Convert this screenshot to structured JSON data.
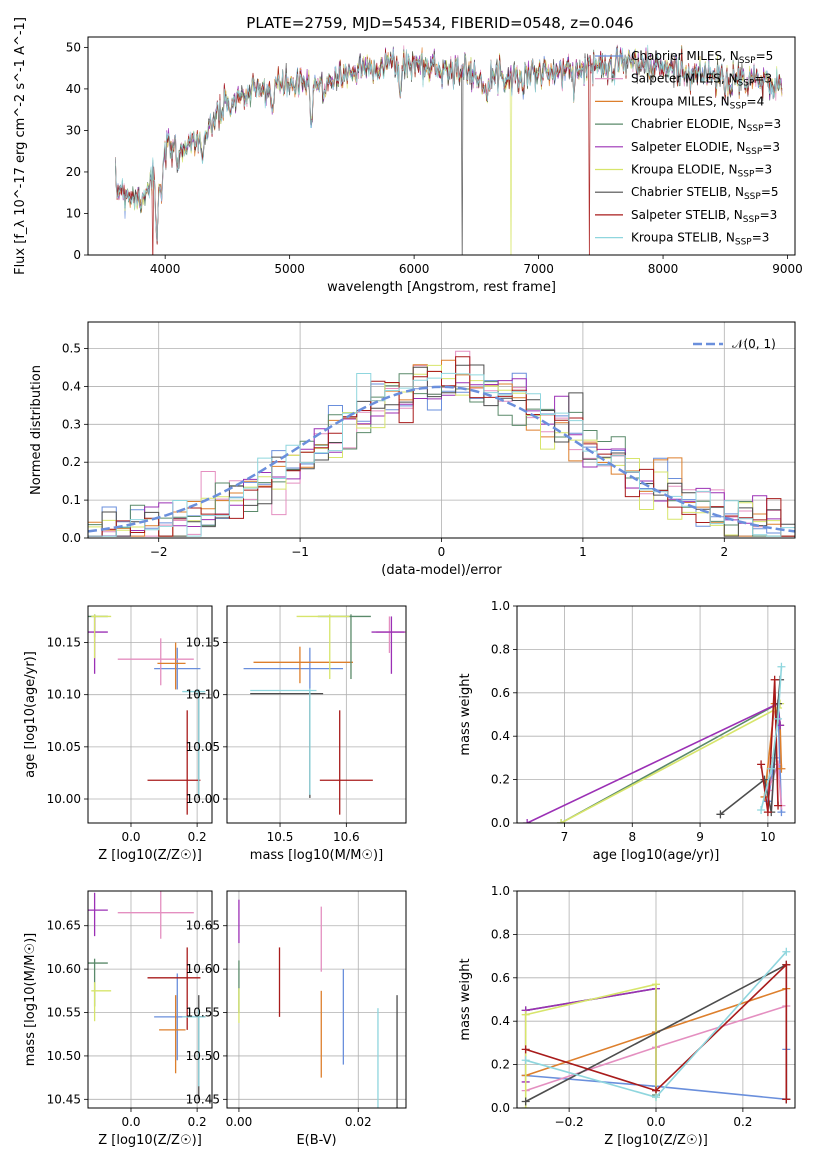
{
  "title": "PLATE=2759, MJD=54534, FIBERID=0548, z=0.046",
  "colors": {
    "Chabrier MILES": "#6a8fdc",
    "Salpeter MILES": "#e48fc0",
    "Kroupa MILES": "#dd7f2c",
    "Chabrier ELODIE": "#5a8a6a",
    "Salpeter ELODIE": "#9b30b5",
    "Kroupa ELODIE": "#d7e56b",
    "Chabrier STELIB": "#4d4d4d",
    "Salpeter STELIB": "#a81b1b",
    "Kroupa STELIB": "#8fd6de",
    "gauss": "#6a8fdc"
  },
  "chart_data": [
    {
      "type": "line",
      "title": "PLATE=2759, MJD=54534, FIBERID=0548, z=0.046",
      "xlabel": "wavelength [Angstrom, rest frame]",
      "ylabel": "Flux [f_λ 10^-17 erg cm^-2 s^-1 A^-1]",
      "xlim": [
        3380,
        9060
      ],
      "ylim": [
        0,
        52.5
      ],
      "xticks": [
        "4000",
        "5000",
        "6000",
        "7000",
        "8000",
        "9000"
      ],
      "yticks": [
        "0",
        "10",
        "20",
        "30",
        "40",
        "50"
      ],
      "legend_position": "upper-right",
      "series": [
        {
          "name": "Chabrier MILES",
          "nssp": "5"
        },
        {
          "name": "Salpeter MILES",
          "nssp": "3"
        },
        {
          "name": "Kroupa MILES",
          "nssp": "4"
        },
        {
          "name": "Chabrier ELODIE",
          "nssp": "3"
        },
        {
          "name": "Salpeter ELODIE",
          "nssp": "3"
        },
        {
          "name": "Kroupa ELODIE",
          "nssp": "3"
        },
        {
          "name": "Chabrier STELIB",
          "nssp": "5"
        },
        {
          "name": "Salpeter STELIB",
          "nssp": "3"
        },
        {
          "name": "Kroupa STELIB",
          "nssp": "3"
        }
      ],
      "continuum": {
        "x": [
          3600,
          3700,
          3800,
          3900,
          3950,
          4000,
          4100,
          4200,
          4300,
          4400,
          4500,
          4600,
          4700,
          4800,
          4900,
          5000,
          5100,
          5200,
          5300,
          5400,
          5500,
          5600,
          5800,
          6000,
          6200,
          6400,
          6600,
          6800,
          7000,
          7200,
          7400,
          7600,
          7800,
          8000,
          8200,
          8400,
          8600,
          8800,
          8960
        ],
        "y": [
          16,
          15,
          13,
          19,
          20,
          25,
          26,
          27,
          29,
          33,
          36,
          38,
          39,
          40,
          41,
          41,
          41,
          41,
          42,
          43,
          44,
          45,
          46,
          46,
          45,
          44,
          43,
          43,
          44,
          44,
          45,
          47,
          46,
          45,
          44,
          43,
          43,
          42,
          41
        ]
      },
      "absorption_dips": [
        {
          "x": 3933,
          "depth": 18
        },
        {
          "x": 3968,
          "depth": 10
        },
        {
          "x": 4101,
          "depth": 6
        },
        {
          "x": 4300,
          "depth": 7
        },
        {
          "x": 4340,
          "depth": 5
        },
        {
          "x": 4861,
          "depth": 6
        },
        {
          "x": 5175,
          "depth": 11
        },
        {
          "x": 5270,
          "depth": 5
        },
        {
          "x": 5890,
          "depth": 7
        },
        {
          "x": 6563,
          "depth": 4
        },
        {
          "x": 6870,
          "depth": 3
        },
        {
          "x": 7600,
          "depth": 3
        },
        {
          "x": 8500,
          "depth": 4
        },
        {
          "x": 8545,
          "depth": 5
        },
        {
          "x": 8665,
          "depth": 4
        }
      ],
      "spikes_to_zero": [
        {
          "series": "Salpeter STELIB",
          "x": 3900
        },
        {
          "series": "Chabrier STELIB",
          "x": 6385
        },
        {
          "series": "Kroupa ELODIE",
          "x": 6780
        },
        {
          "series": "Salpeter STELIB",
          "x": 7410
        }
      ]
    },
    {
      "type": "histogram",
      "xlabel": "(data-model)/error",
      "ylabel": "Normed distribution",
      "xlim": [
        -2.5,
        2.5
      ],
      "ylim": [
        0,
        0.57
      ],
      "xticks": [
        "−2",
        "−1",
        "0",
        "1",
        "2"
      ],
      "yticks": [
        "0.0",
        "0.1",
        "0.2",
        "0.3",
        "0.4",
        "0.5"
      ],
      "legend": [
        "𝒩(0, 1)"
      ],
      "legend_position": "upper-right",
      "bin_width": 0.1,
      "gaussian": {
        "mean": 0,
        "sigma": 1
      }
    },
    {
      "type": "errorbar",
      "xlabel": "Z [log10(Z/Z☉)]",
      "ylabel": "age [log10(age/yr)]",
      "xlim": [
        -0.13,
        0.245
      ],
      "ylim": [
        9.977,
        10.185
      ],
      "xticks": [
        "0.0",
        "0.2"
      ],
      "yticks": [
        "10.00",
        "10.05",
        "10.10",
        "10.15"
      ],
      "points": [
        {
          "series": "Chabrier MILES",
          "x": 0.14,
          "xerr": [
            0.07,
            0.07
          ],
          "y": 10.125,
          "yerr": [
            0.02,
            0.02
          ]
        },
        {
          "series": "Salpeter MILES",
          "x": 0.09,
          "xerr": [
            0.13,
            0.1
          ],
          "y": 10.134,
          "yerr": [
            0.025,
            0.02
          ]
        },
        {
          "series": "Kroupa MILES",
          "x": 0.135,
          "xerr": [
            0.055,
            0.03
          ],
          "y": 10.13,
          "yerr": [
            0.025,
            0.02
          ]
        },
        {
          "series": "Chabrier ELODIE",
          "x": -0.11,
          "xerr": [
            0.02,
            0.04
          ],
          "y": 10.175,
          "yerr": [
            0.02,
            0.002
          ]
        },
        {
          "series": "Salpeter ELODIE",
          "x": -0.11,
          "xerr": [
            0.02,
            0.04
          ],
          "y": 10.16,
          "yerr": [
            0.04,
            0.015
          ]
        },
        {
          "series": "Kroupa ELODIE",
          "x": -0.11,
          "xerr": [
            0.01,
            0.05
          ],
          "y": 10.175,
          "yerr": [
            0.04,
            0.002
          ]
        },
        {
          "series": "Chabrier STELIB",
          "x": 0.205,
          "xerr": [
            0.01,
            0.02
          ],
          "y": 10.101,
          "yerr": [
            0.1,
            0.002
          ]
        },
        {
          "series": "Salpeter STELIB",
          "x": 0.17,
          "xerr": [
            0.12,
            0.04
          ],
          "y": 10.018,
          "yerr": [
            0.033,
            0.067
          ]
        },
        {
          "series": "Kroupa STELIB",
          "x": 0.205,
          "xerr": [
            0.05,
            0.02
          ],
          "y": 10.103,
          "yerr": [
            0.1,
            0.002
          ]
        }
      ]
    },
    {
      "type": "errorbar",
      "xlabel": "mass [log10(M/M☉)]",
      "ylabel": "",
      "xlim": [
        10.42,
        10.69
      ],
      "ylim": [
        9.977,
        10.185
      ],
      "xticks": [
        "10.5",
        "10.6"
      ],
      "yticks": [
        "10.00",
        "10.05",
        "10.10",
        "10.15"
      ],
      "points": [
        {
          "series": "Chabrier MILES",
          "x": 10.545,
          "xerr": [
            0.1,
            0.05
          ],
          "y": 10.125,
          "yerr": [
            0.02,
            0.02
          ]
        },
        {
          "series": "Salpeter MILES",
          "x": 10.665,
          "xerr": [
            0.02,
            0.03
          ],
          "y": 10.16,
          "yerr": [
            0.02,
            0.015
          ]
        },
        {
          "series": "Kroupa MILES",
          "x": 10.53,
          "xerr": [
            0.07,
            0.08
          ],
          "y": 10.131,
          "yerr": [
            0.02,
            0.015
          ]
        },
        {
          "series": "Chabrier ELODIE",
          "x": 10.607,
          "xerr": [
            0.05,
            0.03
          ],
          "y": 10.175,
          "yerr": [
            0.06,
            0.002
          ]
        },
        {
          "series": "Salpeter ELODIE",
          "x": 10.668,
          "xerr": [
            0.03,
            0.02
          ],
          "y": 10.16,
          "yerr": [
            0.04,
            0.015
          ]
        },
        {
          "series": "Kroupa ELODIE",
          "x": 10.575,
          "xerr": [
            0.05,
            0.03
          ],
          "y": 10.175,
          "yerr": [
            0.06,
            0.002
          ]
        },
        {
          "series": "Chabrier STELIB",
          "x": 10.545,
          "xerr": [
            0.09,
            0.02
          ],
          "y": 10.101,
          "yerr": [
            0.1,
            0.002
          ]
        },
        {
          "series": "Salpeter STELIB",
          "x": 10.59,
          "xerr": [
            0.03,
            0.05
          ],
          "y": 10.018,
          "yerr": [
            0.033,
            0.067
          ]
        },
        {
          "series": "Kroupa STELIB",
          "x": 10.545,
          "xerr": [
            0.09,
            0.01
          ],
          "y": 10.104,
          "yerr": [
            0.1,
            0.002
          ]
        }
      ]
    },
    {
      "type": "line",
      "xlabel": "age [log10(age/yr)]",
      "ylabel": "mass weight",
      "xlim": [
        6.3,
        10.4
      ],
      "ylim": [
        0,
        1.0
      ],
      "xticks": [
        "7",
        "8",
        "9",
        "10"
      ],
      "yticks": [
        "0.0",
        "0.2",
        "0.4",
        "0.6",
        "0.8",
        "1.0"
      ],
      "series": [
        {
          "name": "Chabrier MILES",
          "x": [
            10.0,
            10.1,
            10.15,
            10.2
          ],
          "y": [
            0.1,
            0.3,
            0.55,
            0.05
          ]
        },
        {
          "name": "Salpeter MILES",
          "x": [
            10.0,
            10.15,
            10.2
          ],
          "y": [
            0.15,
            0.27,
            0.08
          ]
        },
        {
          "name": "Kroupa MILES",
          "x": [
            9.95,
            10.1,
            10.18,
            10.2
          ],
          "y": [
            0.12,
            0.55,
            0.45,
            0.25
          ]
        },
        {
          "name": "Chabrier ELODIE",
          "x": [
            6.95,
            10.15,
            10.18
          ],
          "y": [
            0.0,
            0.55,
            0.45
          ]
        },
        {
          "name": "Salpeter ELODIE",
          "x": [
            6.45,
            10.15,
            10.18
          ],
          "y": [
            0.0,
            0.55,
            0.45
          ]
        },
        {
          "name": "Kroupa ELODIE",
          "x": [
            6.95,
            10.15,
            10.18
          ],
          "y": [
            0.0,
            0.53,
            0.55
          ]
        },
        {
          "name": "Chabrier STELIB",
          "x": [
            9.3,
            9.95,
            10.05,
            10.15,
            10.18
          ],
          "y": [
            0.04,
            0.2,
            0.05,
            0.55,
            0.66
          ]
        },
        {
          "name": "Salpeter STELIB",
          "x": [
            9.9,
            10.0,
            10.1,
            10.15
          ],
          "y": [
            0.27,
            0.05,
            0.66,
            0.08
          ]
        },
        {
          "name": "Kroupa STELIB",
          "x": [
            9.9,
            10.05,
            10.15,
            10.2
          ],
          "y": [
            0.06,
            0.25,
            0.48,
            0.72
          ]
        }
      ]
    },
    {
      "type": "errorbar",
      "xlabel": "Z [log10(Z/Z☉)]",
      "ylabel": "mass [log10(M/M☉)]",
      "xlim": [
        -0.13,
        0.245
      ],
      "ylim": [
        10.44,
        10.69
      ],
      "xticks": [
        "0.0",
        "0.2"
      ],
      "yticks": [
        "10.45",
        "10.50",
        "10.55",
        "10.60",
        "10.65"
      ],
      "points": [
        {
          "series": "Chabrier MILES",
          "x": 0.14,
          "xerr": [
            0.07,
            0.07
          ],
          "y": 10.545,
          "yerr": [
            0.05,
            0.05
          ]
        },
        {
          "series": "Salpeter MILES",
          "x": 0.09,
          "xerr": [
            0.13,
            0.1
          ],
          "y": 10.665,
          "yerr": [
            0.03,
            0.03
          ]
        },
        {
          "series": "Kroupa MILES",
          "x": 0.135,
          "xerr": [
            0.05,
            0.03
          ],
          "y": 10.53,
          "yerr": [
            0.05,
            0.04
          ]
        },
        {
          "series": "Chabrier ELODIE",
          "x": -0.11,
          "xerr": [
            0.02,
            0.04
          ],
          "y": 10.607,
          "yerr": [
            0.05,
            0.005
          ]
        },
        {
          "series": "Salpeter ELODIE",
          "x": -0.11,
          "xerr": [
            0.02,
            0.04
          ],
          "y": 10.668,
          "yerr": [
            0.03,
            0.02
          ]
        },
        {
          "series": "Kroupa ELODIE",
          "x": -0.11,
          "xerr": [
            0.01,
            0.05
          ],
          "y": 10.575,
          "yerr": [
            0.035,
            0.01
          ]
        },
        {
          "series": "Chabrier STELIB",
          "x": 0.205,
          "xerr": [
            0.01,
            0.02
          ],
          "y": 10.545,
          "yerr": [
            0.095,
            0.025
          ]
        },
        {
          "series": "Salpeter STELIB",
          "x": 0.17,
          "xerr": [
            0.12,
            0.04
          ],
          "y": 10.59,
          "yerr": [
            0.06,
            0.035
          ]
        },
        {
          "series": "Kroupa STELIB",
          "x": 0.205,
          "xerr": [
            0.05,
            0.02
          ],
          "y": 10.545,
          "yerr": [
            0.08,
            0.01
          ]
        }
      ]
    },
    {
      "type": "errorbar",
      "xlabel": "E(B-V)",
      "ylabel": "",
      "xlim": [
        -0.002,
        0.028
      ],
      "ylim": [
        10.44,
        10.69
      ],
      "xticks": [
        "0.00",
        "0.02"
      ],
      "yticks": [
        "10.45",
        "10.50",
        "10.55",
        "10.60",
        "10.65"
      ],
      "points": [
        {
          "series": "Chabrier MILES",
          "x": 0.0175,
          "yerr": [
            0.055,
            0.055
          ],
          "y": 10.545
        },
        {
          "series": "Salpeter MILES",
          "x": 0.0138,
          "yerr": [
            0.04,
            0.035
          ],
          "y": 10.637
        },
        {
          "series": "Kroupa MILES",
          "x": 0.0138,
          "yerr": [
            0.055,
            0.045
          ],
          "y": 10.53
        },
        {
          "series": "Chabrier ELODIE",
          "x": 0.0,
          "yerr": [
            0.03,
            0.03
          ],
          "y": 10.58
        },
        {
          "series": "Salpeter ELODIE",
          "x": 0.0,
          "yerr": [
            0.03,
            0.02
          ],
          "y": 10.66
        },
        {
          "series": "Kroupa ELODIE",
          "x": 0.0,
          "yerr": [
            0.025,
            0.015
          ],
          "y": 10.563
        },
        {
          "series": "Chabrier STELIB",
          "x": 0.0265,
          "yerr": [
            0.12,
            0.025
          ],
          "y": 10.545
        },
        {
          "series": "Salpeter STELIB",
          "x": 0.0068,
          "yerr": [
            0.04,
            0.04
          ],
          "y": 10.585
        },
        {
          "series": "Kroupa STELIB",
          "x": 0.0233,
          "yerr": [
            0.1,
            0.015
          ],
          "y": 10.54
        }
      ]
    },
    {
      "type": "line",
      "xlabel": "Z [log10(Z/Z☉)]",
      "ylabel": "mass weight",
      "xlim": [
        -0.32,
        0.32
      ],
      "ylim": [
        0,
        1.0
      ],
      "xticks": [
        "−0.2",
        "0.0",
        "0.2"
      ],
      "yticks": [
        "0.0",
        "0.2",
        "0.4",
        "0.6",
        "0.8",
        "1.0"
      ],
      "series": [
        {
          "name": "Chabrier MILES",
          "x": [
            -0.3,
            0.0,
            0.3,
            0.3
          ],
          "y": [
            0.15,
            0.1,
            0.04,
            0.27
          ]
        },
        {
          "name": "Salpeter MILES",
          "x": [
            -0.3,
            0.0,
            0.3
          ],
          "y": [
            0.08,
            0.28,
            0.47
          ]
        },
        {
          "name": "Kroupa MILES",
          "x": [
            -0.3,
            0.0,
            0.3
          ],
          "y": [
            0.15,
            0.35,
            0.55
          ]
        },
        {
          "name": "Chabrier ELODIE",
          "x": [
            -0.3,
            0.0,
            0.0
          ],
          "y": [
            0.45,
            0.55,
            0.06
          ]
        },
        {
          "name": "Salpeter ELODIE",
          "x": [
            -0.3,
            -0.3,
            0.0,
            0.0
          ],
          "y": [
            0.12,
            0.45,
            0.55,
            0.08
          ]
        },
        {
          "name": "Kroupa ELODIE",
          "x": [
            -0.3,
            -0.3,
            0.0,
            0.0
          ],
          "y": [
            0.0,
            0.43,
            0.57,
            0.05
          ]
        },
        {
          "name": "Chabrier STELIB",
          "x": [
            -0.3,
            0.3,
            0.3
          ],
          "y": [
            0.03,
            0.66,
            0.04
          ]
        },
        {
          "name": "Salpeter STELIB",
          "x": [
            -0.3,
            0.0,
            0.3,
            0.3
          ],
          "y": [
            0.27,
            0.08,
            0.66,
            0.04
          ]
        },
        {
          "name": "Kroupa STELIB",
          "x": [
            -0.3,
            0.0,
            0.3
          ],
          "y": [
            0.22,
            0.05,
            0.72
          ]
        }
      ]
    }
  ]
}
